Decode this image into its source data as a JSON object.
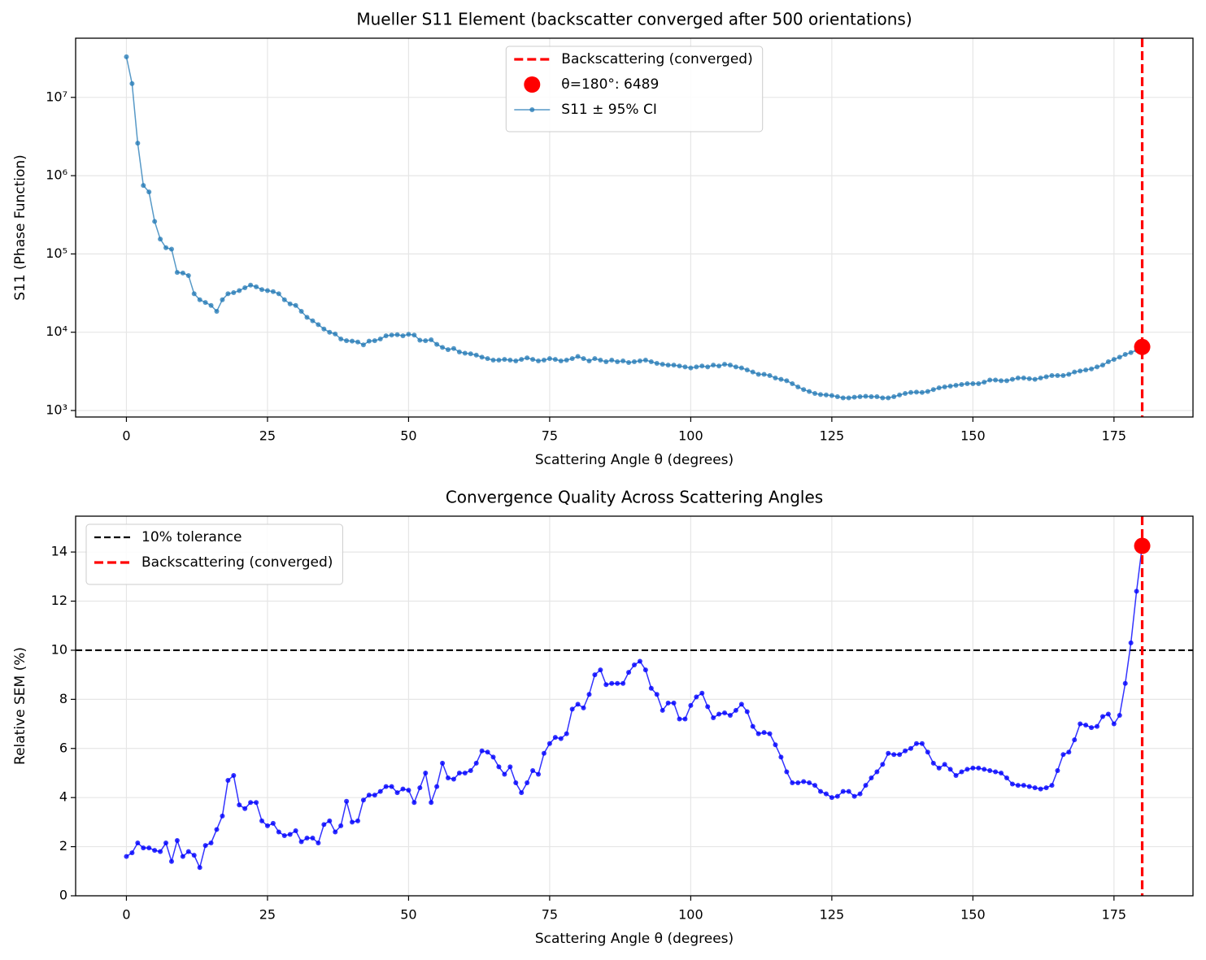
{
  "chart_data": [
    {
      "type": "line",
      "title": "Mueller S11 Element (backscatter converged after 500 orientations)",
      "xlabel": "Scattering Angle θ (degrees)",
      "ylabel": "S11 (Phase Function)",
      "log_y": true,
      "grid": true,
      "legend": "upper center",
      "xlim": [
        -9,
        189
      ],
      "xticks": [
        0,
        25,
        50,
        75,
        100,
        125,
        150,
        175
      ],
      "ylim": [
        826,
        57000000
      ],
      "yticks": [
        {
          "value": 1000,
          "label": "10³"
        },
        {
          "value": 10000,
          "label": "10⁴"
        },
        {
          "value": 100000,
          "label": "10⁵"
        },
        {
          "value": 1000000,
          "label": "10⁶"
        },
        {
          "value": 10000000,
          "label": "10⁷"
        }
      ],
      "x": [
        0,
        1,
        2,
        3,
        4,
        5,
        6,
        7,
        8,
        9,
        10,
        11,
        12,
        13,
        14,
        15,
        16,
        17,
        18,
        19,
        20,
        21,
        22,
        23,
        24,
        25,
        26,
        27,
        28,
        29,
        30,
        31,
        32,
        33,
        34,
        35,
        36,
        37,
        38,
        39,
        40,
        41,
        42,
        43,
        44,
        45,
        46,
        47,
        48,
        49,
        50,
        51,
        52,
        53,
        54,
        55,
        56,
        57,
        58,
        59,
        60,
        61,
        62,
        63,
        64,
        65,
        66,
        67,
        68,
        69,
        70,
        71,
        72,
        73,
        74,
        75,
        76,
        77,
        78,
        79,
        80,
        81,
        82,
        83,
        84,
        85,
        86,
        87,
        88,
        89,
        90,
        91,
        92,
        93,
        94,
        95,
        96,
        97,
        98,
        99,
        100,
        101,
        102,
        103,
        104,
        105,
        106,
        107,
        108,
        109,
        110,
        111,
        112,
        113,
        114,
        115,
        116,
        117,
        118,
        119,
        120,
        121,
        122,
        123,
        124,
        125,
        126,
        127,
        128,
        129,
        130,
        131,
        132,
        133,
        134,
        135,
        136,
        137,
        138,
        139,
        140,
        141,
        142,
        143,
        144,
        145,
        146,
        147,
        148,
        149,
        150,
        151,
        152,
        153,
        154,
        155,
        156,
        157,
        158,
        159,
        160,
        161,
        162,
        163,
        164,
        165,
        166,
        167,
        168,
        169,
        170,
        171,
        172,
        173,
        174,
        175,
        176,
        177,
        178,
        179,
        180
      ],
      "series": [
        {
          "name": "S11 ± 95% CI",
          "color": "#1f77b4",
          "values": [
            33000000,
            15000000,
            2600000,
            750000,
            620000,
            260000,
            155000,
            120000,
            115000,
            58000,
            57000,
            53000,
            31000,
            26000,
            24000,
            22000,
            18500,
            26000,
            31000,
            32000,
            34000,
            37000,
            40000,
            38000,
            35000,
            34000,
            33000,
            31000,
            26000,
            23000,
            22000,
            18500,
            15500,
            14000,
            12500,
            11000,
            10000,
            9500,
            8200,
            7800,
            7700,
            7500,
            6900,
            7700,
            7800,
            8200,
            9000,
            9200,
            9300,
            9000,
            9400,
            9200,
            7900,
            7800,
            8000,
            7000,
            6400,
            6000,
            6200,
            5600,
            5400,
            5300,
            5100,
            4800,
            4600,
            4400,
            4400,
            4500,
            4400,
            4300,
            4500,
            4700,
            4500,
            4300,
            4400,
            4600,
            4500,
            4300,
            4400,
            4600,
            4900,
            4600,
            4300,
            4600,
            4400,
            4200,
            4400,
            4200,
            4300,
            4100,
            4200,
            4300,
            4400,
            4200,
            4000,
            3900,
            3800,
            3800,
            3700,
            3600,
            3500,
            3600,
            3700,
            3600,
            3800,
            3700,
            3900,
            3800,
            3600,
            3500,
            3300,
            3100,
            2900,
            2900,
            2800,
            2600,
            2500,
            2400,
            2200,
            2000,
            1850,
            1750,
            1650,
            1600,
            1580,
            1550,
            1500,
            1450,
            1450,
            1480,
            1500,
            1520,
            1500,
            1500,
            1450,
            1450,
            1500,
            1580,
            1650,
            1700,
            1720,
            1700,
            1750,
            1850,
            1950,
            2000,
            2050,
            2100,
            2150,
            2200,
            2200,
            2200,
            2300,
            2450,
            2450,
            2400,
            2400,
            2500,
            2600,
            2600,
            2550,
            2500,
            2600,
            2700,
            2800,
            2800,
            2800,
            2900,
            3100,
            3200,
            3300,
            3400,
            3600,
            3800,
            4200,
            4500,
            4800,
            5200,
            5500,
            5900,
            6489
          ]
        }
      ],
      "highlight": {
        "name": "θ=180°: 6489",
        "color": "red"
      },
      "vlines": [
        {
          "name": "Backscattering (converged)",
          "x": 180,
          "color": "red"
        }
      ]
    },
    {
      "type": "line",
      "title": "Convergence Quality Across Scattering Angles",
      "xlabel": "Scattering Angle θ (degrees)",
      "ylabel": "Relative SEM (%)",
      "grid": true,
      "legend": "upper left",
      "xlim": [
        -9,
        189
      ],
      "xticks": [
        0,
        25,
        50,
        75,
        100,
        125,
        150,
        175
      ],
      "ylim": [
        0,
        15.46
      ],
      "yticks": [
        0,
        2,
        4,
        6,
        8,
        10,
        12,
        14
      ],
      "x": [
        0,
        1,
        2,
        3,
        4,
        5,
        6,
        7,
        8,
        9,
        10,
        11,
        12,
        13,
        14,
        15,
        16,
        17,
        18,
        19,
        20,
        21,
        22,
        23,
        24,
        25,
        26,
        27,
        28,
        29,
        30,
        31,
        32,
        33,
        34,
        35,
        36,
        37,
        38,
        39,
        40,
        41,
        42,
        43,
        44,
        45,
        46,
        47,
        48,
        49,
        50,
        51,
        52,
        53,
        54,
        55,
        56,
        57,
        58,
        59,
        60,
        61,
        62,
        63,
        64,
        65,
        66,
        67,
        68,
        69,
        70,
        71,
        72,
        73,
        74,
        75,
        76,
        77,
        78,
        79,
        80,
        81,
        82,
        83,
        84,
        85,
        86,
        87,
        88,
        89,
        90,
        91,
        92,
        93,
        94,
        95,
        96,
        97,
        98,
        99,
        100,
        101,
        102,
        103,
        104,
        105,
        106,
        107,
        108,
        109,
        110,
        111,
        112,
        113,
        114,
        115,
        116,
        117,
        118,
        119,
        120,
        121,
        122,
        123,
        124,
        125,
        126,
        127,
        128,
        129,
        130,
        131,
        132,
        133,
        134,
        135,
        136,
        137,
        138,
        139,
        140,
        141,
        142,
        143,
        144,
        145,
        146,
        147,
        148,
        149,
        150,
        151,
        152,
        153,
        154,
        155,
        156,
        157,
        158,
        159,
        160,
        161,
        162,
        163,
        164,
        165,
        166,
        167,
        168,
        169,
        170,
        171,
        172,
        173,
        174,
        175,
        176,
        177,
        178,
        179,
        180
      ],
      "series": [
        {
          "color": "blue",
          "values": [
            1.6,
            1.75,
            2.15,
            1.95,
            1.95,
            1.85,
            1.8,
            2.15,
            1.4,
            2.25,
            1.6,
            1.8,
            1.65,
            1.15,
            2.05,
            2.15,
            2.7,
            3.25,
            4.7,
            4.9,
            3.7,
            3.55,
            3.8,
            3.8,
            3.05,
            2.85,
            2.95,
            2.6,
            2.45,
            2.5,
            2.65,
            2.2,
            2.35,
            2.35,
            2.15,
            2.9,
            3.05,
            2.6,
            2.85,
            3.85,
            3.0,
            3.05,
            3.9,
            4.1,
            4.1,
            4.25,
            4.45,
            4.45,
            4.2,
            4.35,
            4.3,
            3.8,
            4.4,
            5.0,
            3.8,
            4.45,
            5.4,
            4.8,
            4.75,
            5.0,
            5.0,
            5.1,
            5.4,
            5.9,
            5.85,
            5.65,
            5.25,
            4.95,
            5.25,
            4.6,
            4.2,
            4.6,
            5.1,
            4.95,
            5.8,
            6.2,
            6.45,
            6.4,
            6.6,
            7.6,
            7.8,
            7.65,
            8.2,
            9.0,
            9.2,
            8.6,
            8.65,
            8.65,
            8.65,
            9.1,
            9.4,
            9.55,
            9.2,
            8.45,
            8.2,
            7.55,
            7.85,
            7.85,
            7.2,
            7.2,
            7.75,
            8.1,
            8.25,
            7.7,
            7.25,
            7.4,
            7.45,
            7.35,
            7.55,
            7.8,
            7.5,
            6.9,
            6.6,
            6.65,
            6.6,
            6.15,
            5.65,
            5.05,
            4.6,
            4.6,
            4.65,
            4.6,
            4.5,
            4.25,
            4.15,
            4.0,
            4.05,
            4.25,
            4.25,
            4.05,
            4.15,
            4.5,
            4.8,
            5.05,
            5.35,
            5.8,
            5.75,
            5.75,
            5.9,
            6.0,
            6.2,
            6.2,
            5.85,
            5.4,
            5.2,
            5.35,
            5.15,
            4.9,
            5.05,
            5.15,
            5.2,
            5.2,
            5.15,
            5.1,
            5.05,
            5.0,
            4.8,
            4.55,
            4.5,
            4.5,
            4.45,
            4.4,
            4.35,
            4.4,
            4.5,
            5.1,
            5.75,
            5.85,
            6.35,
            7.0,
            6.95,
            6.85,
            6.9,
            7.3,
            7.4,
            7.0,
            7.35,
            8.65,
            10.3,
            12.4,
            14.25
          ]
        }
      ],
      "highlight": {
        "color": "red"
      },
      "hlines": [
        {
          "name": "10% tolerance",
          "y": 10,
          "color": "black"
        }
      ],
      "vlines": [
        {
          "name": "Backscattering (converged)",
          "x": 180,
          "color": "red"
        }
      ]
    }
  ]
}
